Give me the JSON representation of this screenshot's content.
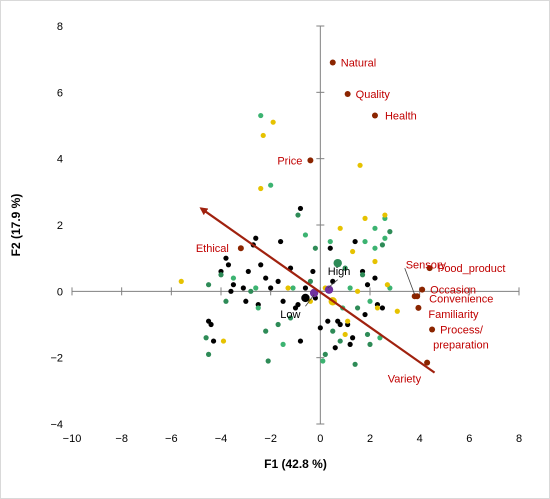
{
  "chart_data": {
    "type": "scatter",
    "xlabel": "F1 (42.8 %)",
    "ylabel": "F2 (17.9 %)",
    "xlim": [
      -10,
      8
    ],
    "ylim": [
      -4,
      8
    ],
    "xticks": [
      -10,
      -8,
      -6,
      -4,
      -2,
      0,
      2,
      4,
      6,
      8
    ],
    "yticks": [
      -4,
      -2,
      0,
      2,
      4,
      6,
      8
    ],
    "grid": false,
    "colors": {
      "variables": "#8b2500",
      "variable_labels": "#c00000",
      "black": "#000000",
      "dark_green": "#2e8b57",
      "light_green": "#3cb371",
      "yellow": "#e6c200",
      "purple": "#7030a0",
      "arrow": "#a0210e"
    },
    "variables": [
      {
        "name": "Natural",
        "x": 0.5,
        "y": 6.9
      },
      {
        "name": "Quality",
        "x": 1.1,
        "y": 5.95
      },
      {
        "name": "Health",
        "x": 2.2,
        "y": 5.3
      },
      {
        "name": "Price",
        "x": -0.4,
        "y": 3.95
      },
      {
        "name": "Ethical",
        "x": -3.2,
        "y": 1.3
      },
      {
        "name": "Sensory",
        "x": 3.8,
        "y": -0.15
      },
      {
        "name": "Food_product",
        "x": 4.4,
        "y": 0.7
      },
      {
        "name": "Occasion",
        "x": 4.1,
        "y": 0.05
      },
      {
        "name": "Convenience",
        "x": 3.9,
        "y": -0.15
      },
      {
        "name": "Familiarity",
        "x": 3.95,
        "y": -0.5
      },
      {
        "name": "Process/",
        "x": 4.5,
        "y": -1.15
      },
      {
        "name": "preparation",
        "x": null,
        "y": null
      },
      {
        "name": "Variety",
        "x": 4.3,
        "y": -2.15
      }
    ],
    "groups": [
      {
        "name": "High",
        "x": 0.35,
        "y": 0.05
      },
      {
        "name": "Low",
        "x": -0.25,
        "y": -0.05
      }
    ],
    "arrow": {
      "from": [
        4.6,
        -2.45
      ],
      "to": [
        -4.8,
        2.5
      ]
    },
    "series": [
      {
        "color": "black",
        "points": [
          [
            -4.0,
            0.6
          ],
          [
            -3.8,
            1.0
          ],
          [
            -3.7,
            0.8
          ],
          [
            -3.5,
            0.2
          ],
          [
            -3.6,
            0.0
          ],
          [
            -3.1,
            0.1
          ],
          [
            -2.9,
            0.6
          ],
          [
            -2.7,
            1.4
          ],
          [
            -2.6,
            1.6
          ],
          [
            -2.4,
            0.8
          ],
          [
            -2.2,
            0.4
          ],
          [
            -2.0,
            0.1
          ],
          [
            -1.7,
            0.3
          ],
          [
            -1.6,
            1.5
          ],
          [
            -1.2,
            0.7
          ],
          [
            -1.0,
            -0.5
          ],
          [
            -0.9,
            -0.4
          ],
          [
            -0.8,
            2.5
          ],
          [
            -0.8,
            -1.5
          ],
          [
            -0.6,
            0.1
          ],
          [
            -0.3,
            0.6
          ],
          [
            -0.2,
            -0.2
          ],
          [
            0.0,
            -1.1
          ],
          [
            0.3,
            -0.9
          ],
          [
            0.4,
            1.3
          ],
          [
            0.5,
            0.3
          ],
          [
            0.6,
            -1.7
          ],
          [
            0.7,
            -0.9
          ],
          [
            0.8,
            -1.0
          ],
          [
            1.1,
            -1.0
          ],
          [
            1.4,
            1.5
          ],
          [
            1.7,
            0.6
          ],
          [
            1.8,
            -0.7
          ],
          [
            1.3,
            -1.4
          ],
          [
            1.9,
            0.2
          ],
          [
            2.3,
            -0.4
          ],
          [
            2.5,
            -0.5
          ],
          [
            -4.5,
            -0.9
          ],
          [
            -4.4,
            -1.0
          ],
          [
            -4.3,
            -1.5
          ],
          [
            -3.0,
            -0.3
          ],
          [
            -2.5,
            -0.4
          ],
          [
            -1.5,
            -0.3
          ],
          [
            1.2,
            -1.6
          ],
          [
            2.2,
            0.4
          ]
        ]
      },
      {
        "color": "dark_green",
        "points": [
          [
            -4.5,
            0.2
          ],
          [
            -4.0,
            0.5
          ],
          [
            -3.8,
            -0.3
          ],
          [
            -2.8,
            0.0
          ],
          [
            -2.1,
            -2.1
          ],
          [
            -2.2,
            -1.2
          ],
          [
            -1.7,
            -1.0
          ],
          [
            -1.2,
            -0.8
          ],
          [
            -0.9,
            2.3
          ],
          [
            -0.4,
            0.3
          ],
          [
            0.2,
            -1.9
          ],
          [
            0.5,
            -1.2
          ],
          [
            1.5,
            -0.5
          ],
          [
            1.7,
            0.5
          ],
          [
            2.0,
            -1.6
          ],
          [
            2.5,
            1.4
          ],
          [
            2.8,
            1.8
          ],
          [
            1.4,
            -2.2
          ],
          [
            -4.5,
            -1.9
          ],
          [
            -4.6,
            -1.4
          ],
          [
            1.0,
            0.7
          ],
          [
            0.8,
            -1.5
          ],
          [
            -0.2,
            1.3
          ],
          [
            1.9,
            -1.3
          ]
        ]
      },
      {
        "color": "light_green",
        "points": [
          [
            -2.4,
            5.3
          ],
          [
            -2.0,
            3.2
          ],
          [
            -2.5,
            -0.5
          ],
          [
            -2.6,
            0.1
          ],
          [
            -1.1,
            0.1
          ],
          [
            -0.6,
            1.7
          ],
          [
            0.4,
            1.5
          ],
          [
            0.9,
            -0.5
          ],
          [
            1.2,
            0.1
          ],
          [
            1.8,
            1.5
          ],
          [
            2.2,
            1.3
          ],
          [
            2.6,
            2.2
          ],
          [
            2.8,
            0.1
          ],
          [
            2.4,
            -1.4
          ],
          [
            2.0,
            -0.3
          ],
          [
            -3.5,
            0.4
          ],
          [
            -1.5,
            -1.6
          ],
          [
            2.6,
            1.6
          ],
          [
            2.2,
            1.9
          ],
          [
            0.1,
            -2.1
          ]
        ]
      },
      {
        "color": "yellow",
        "points": [
          [
            -5.6,
            0.3
          ],
          [
            -3.9,
            -1.5
          ],
          [
            -2.4,
            3.1
          ],
          [
            -2.3,
            4.7
          ],
          [
            -1.9,
            5.1
          ],
          [
            -1.3,
            0.1
          ],
          [
            -0.4,
            -0.3
          ],
          [
            0.2,
            0.1
          ],
          [
            0.8,
            1.9
          ],
          [
            1.1,
            -0.9
          ],
          [
            1.3,
            1.2
          ],
          [
            1.6,
            3.8
          ],
          [
            1.8,
            2.2
          ],
          [
            2.2,
            0.9
          ],
          [
            2.3,
            -0.5
          ],
          [
            2.6,
            2.3
          ],
          [
            3.1,
            -0.6
          ],
          [
            1.0,
            -1.3
          ],
          [
            1.5,
            0.0
          ],
          [
            2.7,
            0.2
          ]
        ]
      },
      {
        "color": "purple",
        "points": [
          [
            0.35,
            0.05
          ],
          [
            -0.25,
            -0.05
          ]
        ]
      }
    ]
  }
}
